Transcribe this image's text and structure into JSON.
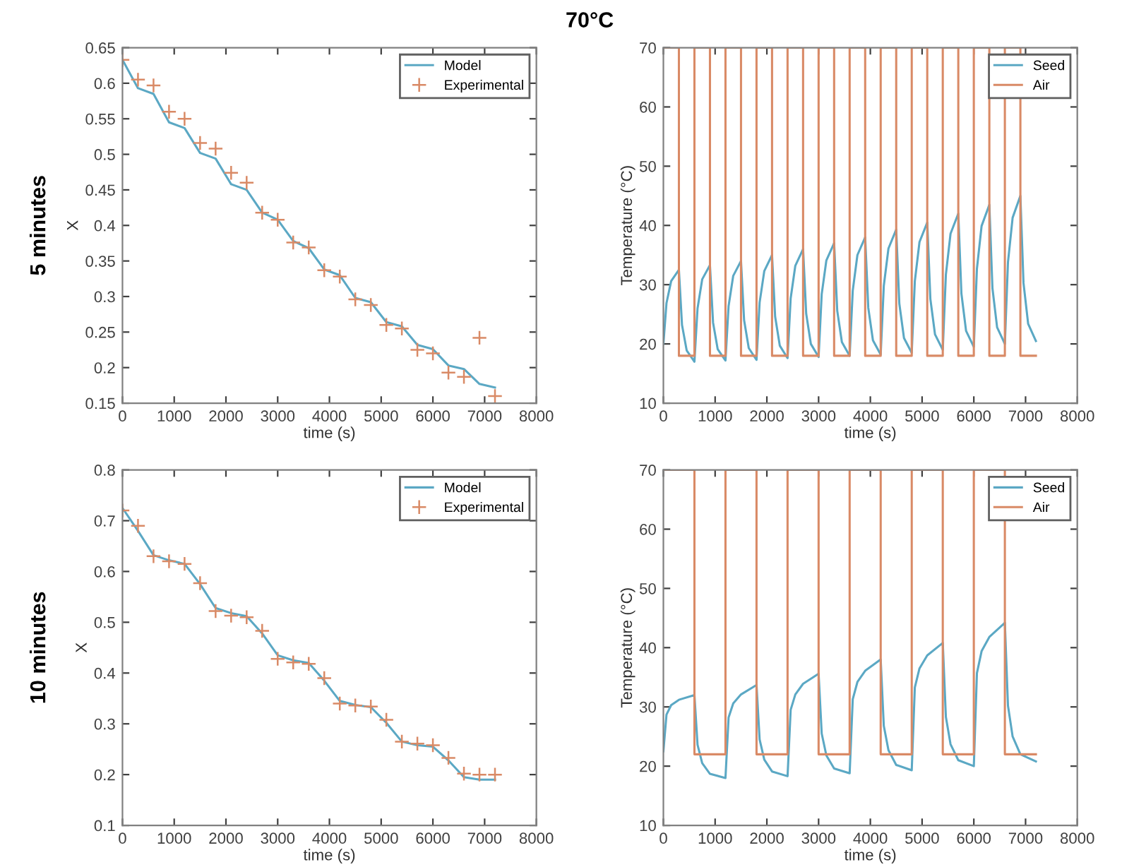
{
  "chart_data": [
    {
      "type": "line",
      "annotations": [
        "70°C",
        "5 minutes"
      ],
      "xlabel": "time (s)",
      "ylabel": "X",
      "xlim": [
        0,
        8000
      ],
      "xticks": [
        0,
        1000,
        2000,
        3000,
        4000,
        5000,
        6000,
        7000,
        8000
      ],
      "ylim": [
        0.15,
        0.65
      ],
      "yticks": [
        0.15,
        0.2,
        0.25,
        0.3,
        0.35,
        0.4,
        0.45,
        0.5,
        0.55,
        0.6,
        0.65
      ],
      "legend": "top right",
      "grid": false,
      "series": [
        {
          "name": "Model",
          "color": "#5ba8c4",
          "marker": "none",
          "x": [
            0,
            300,
            600,
            900,
            1200,
            1500,
            1800,
            2100,
            2400,
            2700,
            3000,
            3300,
            3600,
            3900,
            4200,
            4500,
            4800,
            5100,
            5400,
            5700,
            6000,
            6300,
            6600,
            6900,
            7200
          ],
          "values": [
            0.633,
            0.593,
            0.585,
            0.545,
            0.537,
            0.502,
            0.494,
            0.458,
            0.45,
            0.418,
            0.408,
            0.378,
            0.368,
            0.338,
            0.33,
            0.298,
            0.292,
            0.264,
            0.258,
            0.232,
            0.226,
            0.203,
            0.198,
            0.177,
            0.172
          ]
        },
        {
          "name": "Experimental",
          "type": "scatter",
          "color": "#d98a66",
          "marker": "cross",
          "x": [
            0,
            300,
            600,
            900,
            1200,
            1500,
            1800,
            2100,
            2400,
            2700,
            3000,
            3300,
            3600,
            3900,
            4200,
            4500,
            4800,
            5100,
            5400,
            5700,
            6000,
            6300,
            6600,
            6900,
            7200
          ],
          "values": [
            0.633,
            0.605,
            0.597,
            0.56,
            0.55,
            0.516,
            0.508,
            0.474,
            0.46,
            0.418,
            0.408,
            0.376,
            0.369,
            0.337,
            0.328,
            0.296,
            0.288,
            0.26,
            0.255,
            0.225,
            0.22,
            0.193,
            0.187,
            0.242,
            0.16
          ]
        }
      ]
    },
    {
      "type": "line",
      "xlabel": "time (s)",
      "ylabel": "Temperature (°C)",
      "xlim": [
        0,
        8000
      ],
      "xticks": [
        0,
        1000,
        2000,
        3000,
        4000,
        5000,
        6000,
        7000,
        8000
      ],
      "ylim": [
        10,
        70
      ],
      "yticks": [
        10,
        20,
        30,
        40,
        50,
        60,
        70
      ],
      "legend": "top right",
      "grid": false,
      "series": [
        {
          "name": "Seed",
          "color": "#5ba8c4",
          "marker": "none",
          "x": [
            0,
            60,
            150,
            300,
            360,
            450,
            600,
            660,
            750,
            900,
            960,
            1050,
            1200,
            1260,
            1350,
            1500,
            1560,
            1650,
            1800,
            1860,
            1950,
            2100,
            2160,
            2250,
            2400,
            2460,
            2550,
            2700,
            2760,
            2850,
            3000,
            3060,
            3150,
            3300,
            3360,
            3450,
            3600,
            3660,
            3750,
            3900,
            3960,
            4050,
            4200,
            4260,
            4350,
            4500,
            4560,
            4650,
            4800,
            4860,
            4950,
            5100,
            5160,
            5250,
            5400,
            5460,
            5550,
            5700,
            5760,
            5850,
            6000,
            6060,
            6150,
            6300,
            6360,
            6450,
            6600,
            6660,
            6750,
            6900,
            6960,
            7050,
            7200
          ],
          "values": [
            20,
            26.9,
            30.6,
            32.5,
            23.2,
            18.9,
            17,
            26,
            30.9,
            33.3,
            23.6,
            19.1,
            17.2,
            26.4,
            31.5,
            34,
            24,
            19.3,
            17.3,
            27,
            32.3,
            35,
            24.6,
            19.7,
            17.6,
            27.7,
            33.2,
            36,
            25.1,
            20,
            17.8,
            28.4,
            34.1,
            37,
            25.6,
            20.3,
            18,
            29,
            35,
            38,
            26.1,
            20.6,
            18.2,
            29.8,
            36.1,
            39.3,
            26.8,
            21,
            18.5,
            30.6,
            37.2,
            40.5,
            27.6,
            21.6,
            19,
            31.7,
            38.6,
            42,
            28.5,
            22.2,
            19.5,
            32.7,
            39.9,
            43.5,
            29.4,
            22.8,
            20,
            33.8,
            41.3,
            45,
            30.3,
            23.4,
            20.5
          ]
        },
        {
          "name": "Air",
          "type": "step",
          "color": "#d98a66",
          "marker": "none",
          "x": [
            0,
            300,
            600,
            900,
            1200,
            1500,
            1800,
            2100,
            2400,
            2700,
            3000,
            3300,
            3600,
            3900,
            4200,
            4500,
            4800,
            5100,
            5400,
            5700,
            6000,
            6300,
            6600,
            6900,
            7200
          ],
          "values": [
            70,
            18,
            70,
            18,
            70,
            18,
            70,
            18,
            70,
            18,
            70,
            18,
            70,
            18,
            70,
            18,
            70,
            18,
            70,
            18,
            70,
            18,
            70,
            18,
            18
          ]
        }
      ]
    },
    {
      "type": "line",
      "annotations": [
        "10 minutes"
      ],
      "xlabel": "time (s)",
      "ylabel": "X",
      "xlim": [
        0,
        8000
      ],
      "xticks": [
        0,
        1000,
        2000,
        3000,
        4000,
        5000,
        6000,
        7000,
        8000
      ],
      "ylim": [
        0.1,
        0.8
      ],
      "yticks": [
        0.1,
        0.2,
        0.3,
        0.4,
        0.5,
        0.6,
        0.7,
        0.8
      ],
      "legend": "top right",
      "grid": false,
      "series": [
        {
          "name": "Model",
          "color": "#5ba8c4",
          "marker": "none",
          "x": [
            0,
            300,
            600,
            900,
            1200,
            1500,
            1800,
            2100,
            2400,
            2700,
            3000,
            3300,
            3600,
            3900,
            4200,
            4500,
            4800,
            5100,
            5400,
            5700,
            6000,
            6300,
            6600,
            6900,
            7200
          ],
          "values": [
            0.725,
            0.68,
            0.632,
            0.622,
            0.615,
            0.575,
            0.528,
            0.518,
            0.512,
            0.478,
            0.435,
            0.425,
            0.42,
            0.385,
            0.345,
            0.337,
            0.333,
            0.302,
            0.265,
            0.258,
            0.255,
            0.228,
            0.195,
            0.19,
            0.19
          ]
        },
        {
          "name": "Experimental",
          "type": "scatter",
          "color": "#d98a66",
          "marker": "cross",
          "x": [
            0,
            300,
            600,
            900,
            1200,
            1500,
            1800,
            2100,
            2400,
            2700,
            3000,
            3300,
            3600,
            3900,
            4200,
            4500,
            4800,
            5100,
            5400,
            5700,
            6000,
            6300,
            6600,
            6900,
            7200
          ],
          "values": [
            0.72,
            0.69,
            0.63,
            0.62,
            0.615,
            0.577,
            0.522,
            0.513,
            0.51,
            0.483,
            0.428,
            0.421,
            0.418,
            0.39,
            0.34,
            0.336,
            0.334,
            0.308,
            0.265,
            0.261,
            0.258,
            0.233,
            0.202,
            0.2,
            0.2
          ]
        }
      ]
    },
    {
      "type": "line",
      "xlabel": "time (s)",
      "ylabel": "Temperature (°C)",
      "xlim": [
        0,
        8000
      ],
      "xticks": [
        0,
        1000,
        2000,
        3000,
        4000,
        5000,
        6000,
        7000,
        8000
      ],
      "ylim": [
        10,
        70
      ],
      "yticks": [
        10,
        20,
        30,
        40,
        50,
        60,
        70
      ],
      "legend": "top right",
      "grid": false,
      "series": [
        {
          "name": "Seed",
          "color": "#5ba8c4",
          "marker": "none",
          "x": [
            0,
            60,
            150,
            300,
            600,
            660,
            750,
            900,
            1200,
            1260,
            1350,
            1500,
            1800,
            1860,
            1950,
            2100,
            2400,
            2460,
            2550,
            2700,
            3000,
            3060,
            3150,
            3300,
            3600,
            3660,
            3750,
            3900,
            4200,
            4260,
            4350,
            4500,
            4800,
            4860,
            4950,
            5100,
            5400,
            5460,
            5550,
            5700,
            6000,
            6060,
            6150,
            6300,
            6600,
            6660,
            6750,
            6900,
            7200
          ],
          "values": [
            22.5,
            28.7,
            30.3,
            31.2,
            32,
            23.6,
            20.5,
            18.7,
            18,
            28.2,
            30.6,
            32.1,
            33.7,
            24.5,
            21.1,
            19.1,
            18.3,
            29.5,
            32.1,
            33.9,
            35.6,
            25.5,
            21.8,
            19.6,
            18.8,
            31.3,
            34.2,
            36.1,
            38,
            26.8,
            22.7,
            20.2,
            19.3,
            33.3,
            36.5,
            38.7,
            40.8,
            28.3,
            23.7,
            21,
            20,
            35.7,
            39.4,
            41.8,
            44.2,
            30.2,
            25,
            22,
            20.8
          ]
        },
        {
          "name": "Air",
          "type": "step",
          "color": "#d98a66",
          "marker": "none",
          "x": [
            0,
            600,
            1200,
            1800,
            2400,
            3000,
            3600,
            4200,
            4800,
            5400,
            6000,
            6600,
            7200
          ],
          "values": [
            70,
            22,
            70,
            22,
            70,
            22,
            70,
            22,
            70,
            22,
            70,
            22,
            22
          ]
        }
      ]
    }
  ]
}
